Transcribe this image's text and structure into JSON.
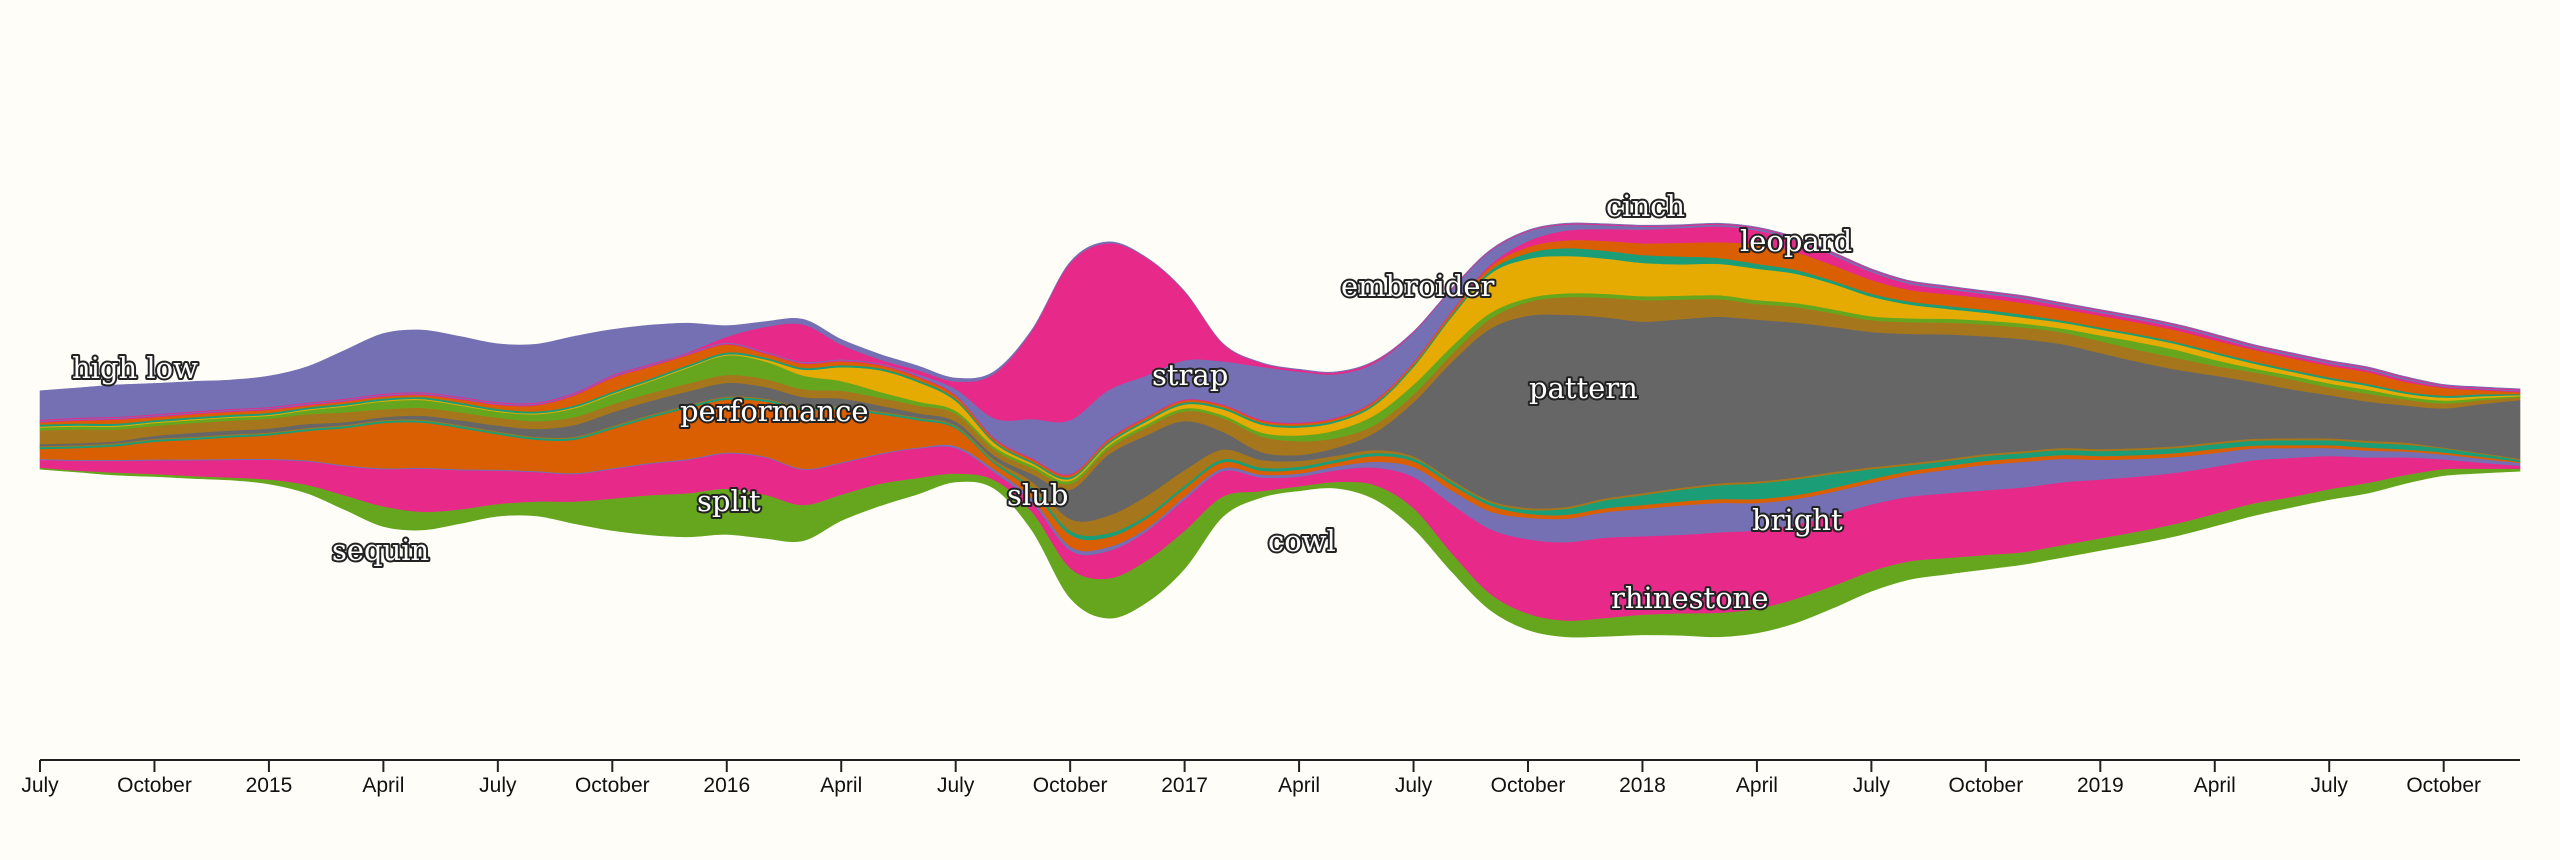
{
  "chart_data": {
    "type": "area",
    "offset": "wiggle-streamgraph",
    "x_axis": {
      "tick_labels": [
        "July",
        "October",
        "2015",
        "April",
        "July",
        "October",
        "2016",
        "April",
        "July",
        "October",
        "2017",
        "April",
        "July",
        "October",
        "2018",
        "April",
        "July",
        "October",
        "2019",
        "April",
        "July",
        "October"
      ],
      "start": "2014-07",
      "end": "2019-12"
    },
    "x": [
      "2014-07",
      "2014-08",
      "2014-09",
      "2014-10",
      "2014-11",
      "2014-12",
      "2015-01",
      "2015-02",
      "2015-03",
      "2015-04",
      "2015-05",
      "2015-06",
      "2015-07",
      "2015-08",
      "2015-09",
      "2015-10",
      "2015-11",
      "2015-12",
      "2016-01",
      "2016-02",
      "2016-03",
      "2016-04",
      "2016-05",
      "2016-06",
      "2016-07",
      "2016-08",
      "2016-09",
      "2016-10",
      "2016-11",
      "2016-12",
      "2017-01",
      "2017-02",
      "2017-03",
      "2017-04",
      "2017-05",
      "2017-06",
      "2017-07",
      "2017-08",
      "2017-09",
      "2017-10",
      "2017-11",
      "2017-12",
      "2018-01",
      "2018-02",
      "2018-03",
      "2018-04",
      "2018-05",
      "2018-06",
      "2018-07",
      "2018-08",
      "2018-09",
      "2018-10",
      "2018-11",
      "2018-12",
      "2019-01",
      "2019-02",
      "2019-03",
      "2019-04",
      "2019-05",
      "2019-06",
      "2019-07",
      "2019-08",
      "2019-09",
      "2019-10",
      "2019-11",
      "2019-12"
    ],
    "series": [
      {
        "name": "sequin",
        "color": "#7570b3",
        "values": [
          30,
          31,
          33,
          32,
          31,
          30,
          32,
          37,
          50,
          62,
          64,
          62,
          60,
          60,
          58,
          47,
          40,
          30,
          12,
          6,
          6,
          6,
          6,
          5,
          4,
          3,
          2,
          2,
          2,
          1,
          1,
          1,
          1,
          1,
          1,
          1,
          1,
          1,
          1,
          1,
          1,
          1,
          1,
          1,
          1,
          1,
          1,
          1,
          1,
          1,
          1,
          1,
          1,
          1,
          1,
          1,
          1,
          1,
          1,
          1,
          1,
          1,
          1,
          1,
          1,
          1
        ]
      },
      {
        "name": "slub",
        "color": "#e7298a",
        "values": [
          1,
          1,
          1,
          1,
          1,
          1,
          1,
          1,
          1,
          1,
          1,
          1,
          1,
          1,
          1,
          1,
          1,
          1,
          6,
          25,
          38,
          15,
          4,
          4,
          8,
          45,
          90,
          160,
          150,
          120,
          70,
          18,
          4,
          2,
          2,
          2,
          1,
          1,
          1,
          1,
          1,
          1,
          1,
          1,
          1,
          1,
          1,
          1,
          1,
          1,
          1,
          1,
          1,
          1,
          1,
          1,
          1,
          1,
          1,
          1,
          1,
          1,
          1,
          1,
          1,
          1
        ]
      },
      {
        "name": "cowl",
        "color": "#7570b3",
        "values": [
          1,
          1,
          1,
          1,
          1,
          1,
          1,
          1,
          1,
          1,
          1,
          1,
          1,
          1,
          1,
          1,
          1,
          1,
          1,
          1,
          1,
          1,
          1,
          2,
          6,
          20,
          40,
          55,
          50,
          42,
          40,
          44,
          54,
          52,
          44,
          38,
          30,
          22,
          14,
          10,
          6,
          4,
          3,
          2,
          2,
          2,
          2,
          2,
          2,
          2,
          2,
          2,
          2,
          2,
          2,
          2,
          2,
          2,
          2,
          2,
          2,
          2,
          2,
          1,
          1,
          1
        ]
      },
      {
        "name": "rhinestone",
        "color": "#e7298a",
        "values": [
          1,
          1,
          1,
          1,
          1,
          1,
          1,
          1,
          1,
          1,
          1,
          1,
          1,
          1,
          1,
          1,
          1,
          1,
          1,
          1,
          1,
          1,
          1,
          1,
          1,
          1,
          1,
          1,
          1,
          1,
          1,
          1,
          1,
          1,
          1,
          1,
          1,
          1,
          2,
          6,
          10,
          12,
          14,
          15,
          16,
          14,
          12,
          10,
          8,
          6,
          5,
          4,
          4,
          3,
          3,
          3,
          3,
          3,
          2,
          2,
          2,
          2,
          2,
          1,
          1,
          1
        ]
      },
      {
        "name": "",
        "color": "#d95f02",
        "values": [
          2,
          3,
          4,
          3,
          3,
          3,
          3,
          2,
          2,
          2,
          2,
          3,
          4,
          6,
          10,
          14,
          12,
          10,
          8,
          4,
          4,
          4,
          3,
          3,
          3,
          2,
          2,
          2,
          2,
          2,
          2,
          2,
          2,
          2,
          2,
          2,
          2,
          3,
          4,
          6,
          8,
          10,
          12,
          14,
          16,
          20,
          18,
          16,
          14,
          12,
          12,
          12,
          12,
          12,
          12,
          12,
          12,
          12,
          12,
          12,
          12,
          12,
          10,
          8,
          4,
          2
        ]
      },
      {
        "name": "",
        "color": "#1b9e77",
        "values": [
          2,
          2,
          2,
          2,
          2,
          2,
          2,
          2,
          2,
          2,
          2,
          2,
          2,
          2,
          2,
          2,
          2,
          2,
          2,
          2,
          2,
          2,
          2,
          2,
          2,
          2,
          2,
          2,
          2,
          2,
          2,
          2,
          2,
          2,
          2,
          2,
          2,
          2,
          3,
          6,
          8,
          8,
          8,
          8,
          6,
          5,
          4,
          3,
          3,
          3,
          3,
          3,
          3,
          2,
          2,
          2,
          2,
          2,
          2,
          2,
          2,
          2,
          2,
          2,
          2,
          1
        ]
      },
      {
        "name": "bright",
        "color": "#e6ab02",
        "values": [
          1,
          1,
          1,
          1,
          1,
          1,
          1,
          1,
          1,
          1,
          1,
          1,
          1,
          1,
          1,
          1,
          1,
          1,
          1,
          2,
          6,
          14,
          22,
          20,
          10,
          4,
          2,
          2,
          2,
          3,
          4,
          6,
          8,
          8,
          8,
          10,
          18,
          30,
          40,
          40,
          38,
          36,
          34,
          32,
          32,
          32,
          30,
          26,
          20,
          14,
          10,
          8,
          6,
          6,
          6,
          6,
          6,
          6,
          5,
          4,
          4,
          4,
          3,
          3,
          2,
          1
        ]
      },
      {
        "name": "split",
        "color": "#66a61e",
        "values": [
          3,
          3,
          3,
          3,
          3,
          3,
          3,
          4,
          6,
          8,
          8,
          7,
          6,
          7,
          9,
          10,
          12,
          16,
          20,
          18,
          14,
          10,
          6,
          4,
          3,
          3,
          3,
          3,
          3,
          3,
          3,
          3,
          4,
          6,
          8,
          10,
          10,
          8,
          6,
          4,
          4,
          4,
          4,
          4,
          4,
          4,
          4,
          4,
          4,
          4,
          4,
          4,
          4,
          4,
          6,
          8,
          8,
          6,
          4,
          4,
          4,
          4,
          3,
          3,
          2,
          1
        ]
      },
      {
        "name": "",
        "color": "#a6761d",
        "values": [
          14,
          14,
          12,
          10,
          10,
          10,
          10,
          10,
          10,
          8,
          8,
          8,
          8,
          8,
          8,
          8,
          8,
          8,
          8,
          8,
          8,
          8,
          8,
          8,
          8,
          6,
          6,
          6,
          6,
          8,
          10,
          14,
          16,
          14,
          10,
          8,
          8,
          8,
          10,
          14,
          18,
          20,
          22,
          20,
          18,
          16,
          16,
          14,
          12,
          12,
          12,
          12,
          12,
          12,
          12,
          12,
          12,
          10,
          10,
          10,
          8,
          8,
          6,
          5,
          4,
          3
        ]
      },
      {
        "name": "pattern",
        "color": "#666666",
        "values": [
          2,
          2,
          2,
          3,
          4,
          4,
          4,
          4,
          3,
          3,
          4,
          5,
          6,
          8,
          12,
          14,
          14,
          14,
          14,
          12,
          10,
          8,
          6,
          4,
          4,
          4,
          8,
          30,
          62,
          62,
          50,
          18,
          8,
          6,
          8,
          18,
          55,
          120,
          175,
          196,
          196,
          185,
          175,
          172,
          170,
          165,
          158,
          148,
          138,
          132,
          127,
          120,
          114,
          106,
          98,
          88,
          78,
          68,
          58,
          50,
          44,
          40,
          38,
          40,
          50,
          60
        ]
      },
      {
        "name": "strap",
        "color": "#a6761d",
        "values": [
          1,
          1,
          1,
          1,
          1,
          1,
          1,
          1,
          1,
          1,
          1,
          1,
          1,
          1,
          1,
          1,
          1,
          1,
          1,
          1,
          1,
          1,
          1,
          1,
          1,
          2,
          6,
          12,
          18,
          20,
          16,
          10,
          8,
          6,
          4,
          3,
          2,
          2,
          2,
          2,
          2,
          2,
          2,
          2,
          2,
          2,
          2,
          2,
          2,
          2,
          2,
          2,
          2,
          2,
          2,
          2,
          2,
          2,
          2,
          2,
          2,
          2,
          2,
          1,
          1,
          1
        ]
      },
      {
        "name": "",
        "color": "#1b9e77",
        "values": [
          2,
          2,
          2,
          2,
          2,
          2,
          2,
          2,
          2,
          2,
          2,
          2,
          2,
          2,
          2,
          2,
          2,
          2,
          2,
          2,
          2,
          2,
          2,
          2,
          2,
          2,
          3,
          4,
          4,
          3,
          3,
          3,
          3,
          3,
          3,
          3,
          3,
          3,
          3,
          4,
          6,
          8,
          10,
          12,
          14,
          16,
          16,
          14,
          10,
          6,
          5,
          5,
          5,
          5,
          5,
          5,
          5,
          5,
          5,
          5,
          5,
          5,
          5,
          4,
          3,
          2
        ]
      },
      {
        "name": "performance",
        "color": "#d95f02",
        "values": [
          10,
          12,
          14,
          18,
          20,
          22,
          24,
          30,
          38,
          46,
          46,
          42,
          36,
          32,
          34,
          40,
          46,
          52,
          54,
          56,
          60,
          54,
          40,
          28,
          18,
          6,
          8,
          12,
          10,
          10,
          8,
          6,
          4,
          4,
          4,
          6,
          6,
          6,
          6,
          4,
          4,
          4,
          4,
          4,
          4,
          4,
          4,
          4,
          4,
          4,
          4,
          4,
          4,
          4,
          4,
          4,
          4,
          4,
          3,
          3,
          3,
          3,
          2,
          2,
          2,
          1
        ]
      },
      {
        "name": "leopard",
        "color": "#7570b3",
        "values": [
          1,
          1,
          1,
          1,
          1,
          1,
          1,
          1,
          1,
          1,
          1,
          1,
          1,
          1,
          1,
          1,
          1,
          1,
          1,
          1,
          1,
          1,
          1,
          1,
          2,
          3,
          4,
          4,
          4,
          3,
          3,
          3,
          3,
          3,
          4,
          6,
          10,
          14,
          18,
          22,
          24,
          26,
          28,
          30,
          30,
          28,
          26,
          24,
          22,
          22,
          24,
          26,
          26,
          24,
          20,
          18,
          16,
          14,
          12,
          10,
          8,
          7,
          6,
          5,
          4,
          3
        ]
      },
      {
        "name": "high low",
        "color": "#e7298a",
        "values": [
          8,
          10,
          12,
          14,
          16,
          18,
          20,
          24,
          30,
          38,
          44,
          40,
          34,
          30,
          28,
          30,
          32,
          34,
          36,
          38,
          36,
          32,
          30,
          30,
          26,
          8,
          10,
          18,
          28,
          30,
          32,
          26,
          14,
          10,
          12,
          18,
          32,
          50,
          66,
          76,
          80,
          82,
          80,
          80,
          82,
          80,
          76,
          72,
          68,
          66,
          66,
          66,
          66,
          64,
          60,
          56,
          52,
          48,
          44,
          40,
          34,
          26,
          18,
          10,
          6,
          3
        ]
      },
      {
        "name": "cinch",
        "color": "#66a61e",
        "values": [
          1,
          1,
          2,
          2,
          2,
          2,
          4,
          8,
          14,
          20,
          18,
          14,
          12,
          14,
          22,
          32,
          40,
          44,
          46,
          44,
          36,
          26,
          22,
          16,
          8,
          8,
          18,
          30,
          40,
          42,
          38,
          20,
          6,
          4,
          6,
          14,
          20,
          18,
          16,
          16,
          16,
          18,
          20,
          22,
          24,
          24,
          24,
          22,
          20,
          18,
          16,
          14,
          12,
          12,
          12,
          12,
          12,
          12,
          12,
          10,
          10,
          10,
          8,
          6,
          4,
          2
        ]
      }
    ],
    "annotations": [
      "high low",
      "performance",
      "split",
      "sequin",
      "slub",
      "strap",
      "cowl",
      "embroider",
      "cinch",
      "leopard",
      "pattern",
      "bright",
      "rhinestone"
    ]
  }
}
